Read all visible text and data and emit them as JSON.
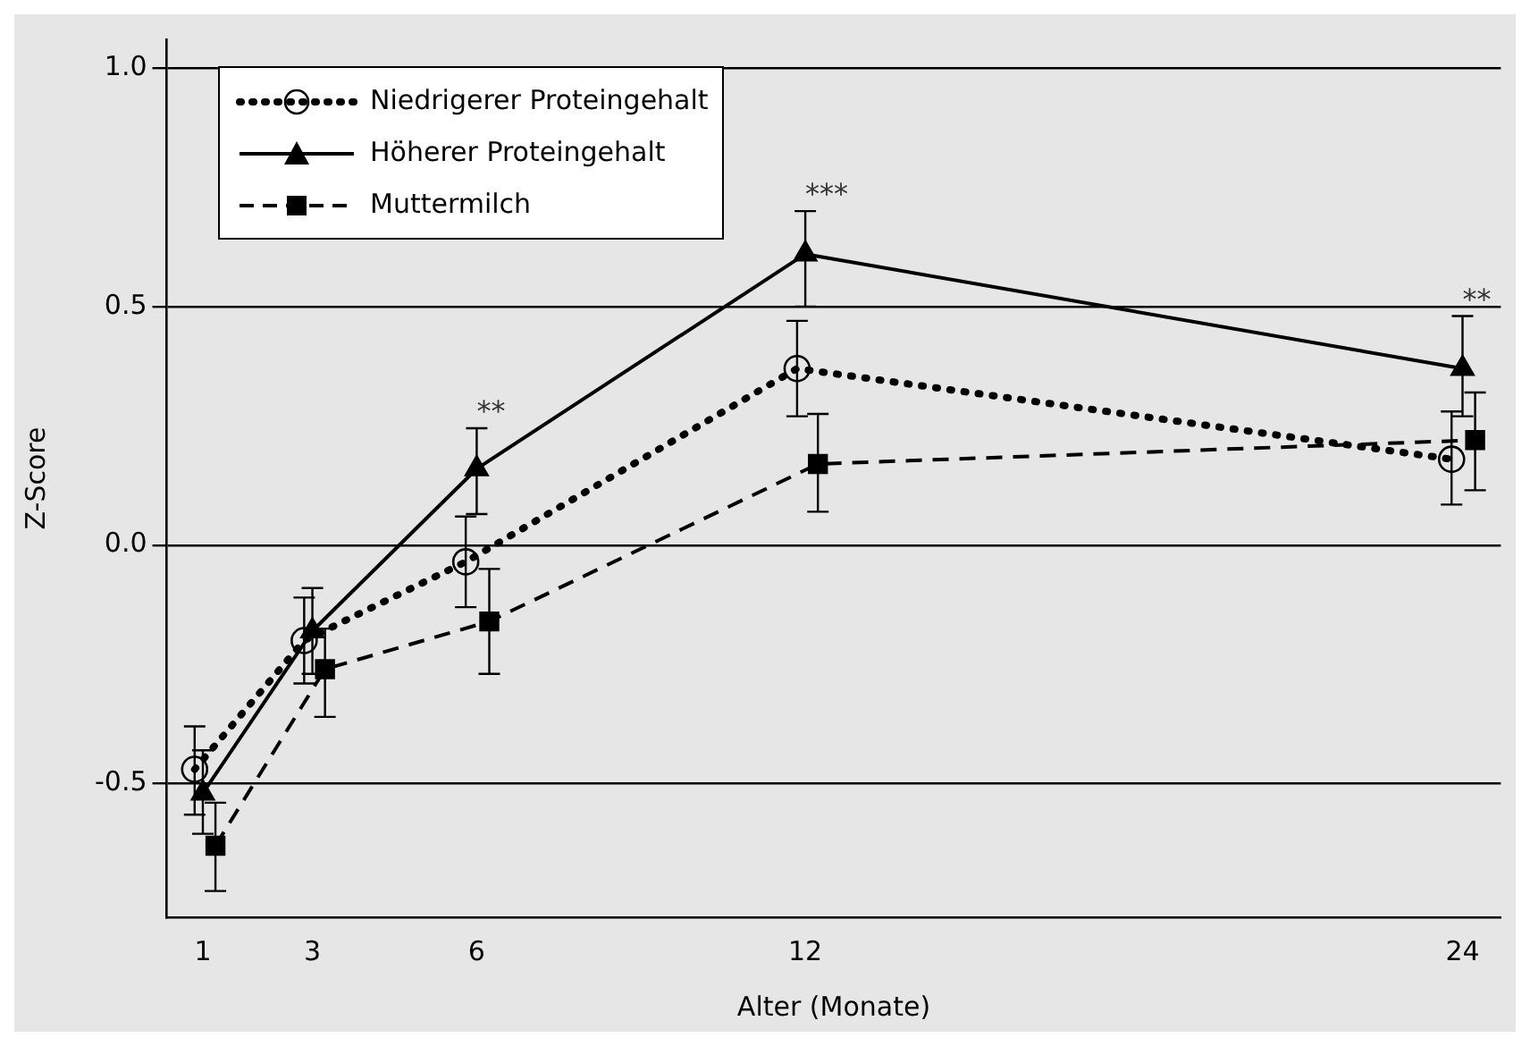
{
  "chart_data": {
    "type": "line",
    "xlabel": "Alter (Monate)",
    "ylabel": "Z-Score",
    "xlim": [
      0.34,
      24.7
    ],
    "xticks": [
      1,
      3,
      6,
      12,
      24
    ],
    "ylim": [
      -0.78,
      1.06
    ],
    "yticks": [
      -0.5,
      {
        "value": 0,
        "label": "0.0"
      },
      0.5,
      {
        "value": 1,
        "label": "1.0"
      }
    ],
    "grid": "y",
    "legend": "top left",
    "series": [
      {
        "name": "Niedrigerer Proteingehalt",
        "color": "#000000",
        "marker": "circle",
        "line_style": "dotted",
        "x": [
          0.85,
          2.85,
          5.8,
          11.85,
          23.8
        ],
        "values": [
          -0.47,
          -0.2,
          -0.035,
          0.37,
          0.18
        ],
        "errors": [
          [
            -0.565,
            -0.38
          ],
          [
            -0.29,
            -0.11
          ],
          [
            -0.13,
            0.06
          ],
          [
            0.27,
            0.47
          ],
          [
            0.085,
            0.28
          ]
        ]
      },
      {
        "name": "Höherer Proteingehalt",
        "color": "#000000",
        "marker": "triangle",
        "line_style": "solid",
        "x": [
          1,
          3,
          6,
          12,
          24
        ],
        "values": [
          -0.52,
          -0.18,
          0.16,
          0.61,
          0.37
        ],
        "errors": [
          [
            -0.605,
            -0.43
          ],
          [
            -0.27,
            -0.09
          ],
          [
            0.065,
            0.245
          ],
          [
            0.5,
            0.7
          ],
          [
            0.27,
            0.48
          ]
        ]
      },
      {
        "name": "Muttermilch",
        "color": "#000000",
        "marker": "square",
        "line_style": "dashed",
        "x": [
          1.23,
          3.23,
          6.23,
          12.23,
          24.23
        ],
        "values": [
          -0.63,
          -0.26,
          -0.16,
          0.17,
          0.22
        ],
        "errors": [
          [
            -0.725,
            -0.54
          ],
          [
            -0.36,
            -0.175
          ],
          [
            -0.27,
            -0.05
          ],
          [
            0.07,
            0.275
          ],
          [
            0.115,
            0.32
          ]
        ]
      }
    ],
    "annotations": [
      {
        "text": "**",
        "x": 6,
        "y": 0.245
      },
      {
        "text": "***",
        "x": 12,
        "y": 0.7
      },
      {
        "text": "**",
        "x": 24,
        "y": 0.48
      }
    ]
  }
}
